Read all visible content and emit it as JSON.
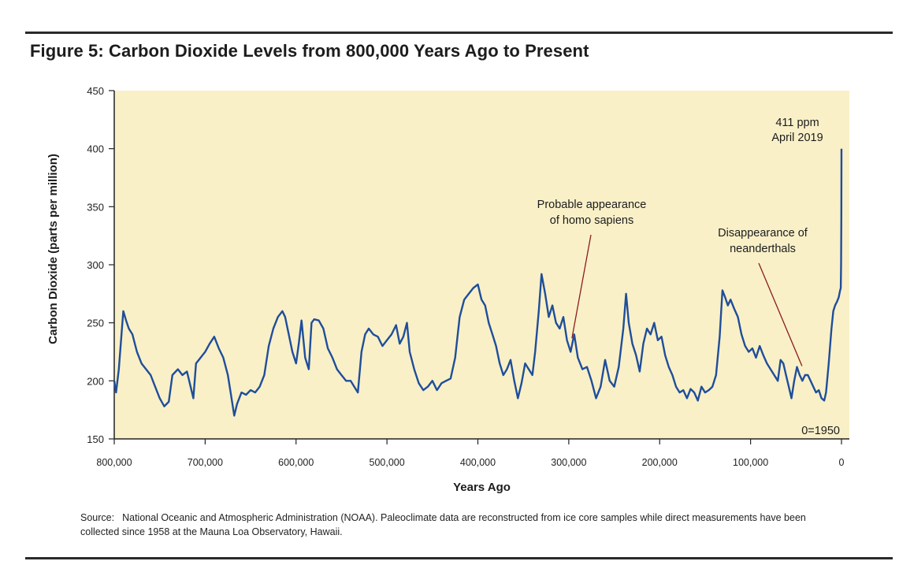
{
  "figure": {
    "title": "Figure 5: Carbon Dioxide Levels from 800,000 Years Ago to Present",
    "source_label": "Source:",
    "source_text": "National Oceanic and Atmospheric Administration (NOAA). Paleoclimate data are reconstructed from ice core samples while direct measurements have been collected since 1958 at the Mauna Loa Observatory, Hawaii."
  },
  "colors": {
    "plot_background": "#f9f0c8",
    "line": "#1f4e9a",
    "annotation_line": "#8b1c1c",
    "axis": "#222222"
  },
  "chart_data": {
    "type": "line",
    "xlabel": "Years Ago",
    "ylabel": "Carbon Dioxide (parts per million)",
    "xlim": [
      800000,
      0
    ],
    "ylim": [
      150,
      450
    ],
    "x_ticks": [
      800000,
      700000,
      600000,
      500000,
      400000,
      300000,
      200000,
      100000,
      0
    ],
    "x_tick_labels": [
      "800,000",
      "700,000",
      "600,000",
      "500,000",
      "400,000",
      "300,000",
      "200,000",
      "100,000",
      "0"
    ],
    "y_ticks": [
      150,
      200,
      250,
      300,
      350,
      400,
      450
    ],
    "y_tick_labels": [
      "150",
      "200",
      "250",
      "300",
      "350",
      "400",
      "450"
    ],
    "grid": false,
    "legend": "none",
    "x_reversed": true,
    "series": [
      {
        "values": [
          [
            800000,
            200
          ],
          [
            798000,
            190
          ],
          [
            795000,
            210
          ],
          [
            792000,
            240
          ],
          [
            790000,
            260
          ],
          [
            787000,
            252
          ],
          [
            784000,
            245
          ],
          [
            780000,
            240
          ],
          [
            775000,
            225
          ],
          [
            770000,
            215
          ],
          [
            765000,
            210
          ],
          [
            760000,
            205
          ],
          [
            755000,
            195
          ],
          [
            750000,
            185
          ],
          [
            745000,
            178
          ],
          [
            740000,
            182
          ],
          [
            736000,
            205
          ],
          [
            730000,
            210
          ],
          [
            725000,
            205
          ],
          [
            720000,
            208
          ],
          [
            716000,
            195
          ],
          [
            713000,
            185
          ],
          [
            710000,
            215
          ],
          [
            705000,
            220
          ],
          [
            700000,
            225
          ],
          [
            695000,
            232
          ],
          [
            690000,
            238
          ],
          [
            685000,
            228
          ],
          [
            680000,
            220
          ],
          [
            675000,
            205
          ],
          [
            672000,
            190
          ],
          [
            668000,
            170
          ],
          [
            665000,
            180
          ],
          [
            660000,
            190
          ],
          [
            655000,
            188
          ],
          [
            650000,
            192
          ],
          [
            645000,
            190
          ],
          [
            640000,
            195
          ],
          [
            635000,
            205
          ],
          [
            630000,
            230
          ],
          [
            625000,
            245
          ],
          [
            620000,
            255
          ],
          [
            615000,
            260
          ],
          [
            612000,
            255
          ],
          [
            608000,
            240
          ],
          [
            604000,
            225
          ],
          [
            600000,
            215
          ],
          [
            597000,
            232
          ],
          [
            594000,
            252
          ],
          [
            590000,
            220
          ],
          [
            586000,
            210
          ],
          [
            583000,
            250
          ],
          [
            580000,
            253
          ],
          [
            575000,
            252
          ],
          [
            570000,
            245
          ],
          [
            565000,
            228
          ],
          [
            560000,
            220
          ],
          [
            555000,
            210
          ],
          [
            550000,
            205
          ],
          [
            545000,
            200
          ],
          [
            540000,
            200
          ],
          [
            536000,
            195
          ],
          [
            532000,
            190
          ],
          [
            528000,
            225
          ],
          [
            524000,
            240
          ],
          [
            520000,
            245
          ],
          [
            515000,
            240
          ],
          [
            510000,
            238
          ],
          [
            505000,
            230
          ],
          [
            500000,
            235
          ],
          [
            495000,
            240
          ],
          [
            490000,
            248
          ],
          [
            486000,
            232
          ],
          [
            482000,
            238
          ],
          [
            478000,
            250
          ],
          [
            475000,
            225
          ],
          [
            470000,
            210
          ],
          [
            465000,
            198
          ],
          [
            460000,
            192
          ],
          [
            455000,
            195
          ],
          [
            450000,
            200
          ],
          [
            445000,
            192
          ],
          [
            440000,
            198
          ],
          [
            435000,
            200
          ],
          [
            430000,
            202
          ],
          [
            425000,
            220
          ],
          [
            420000,
            255
          ],
          [
            415000,
            270
          ],
          [
            410000,
            275
          ],
          [
            405000,
            280
          ],
          [
            400000,
            283
          ],
          [
            396000,
            270
          ],
          [
            392000,
            265
          ],
          [
            388000,
            250
          ],
          [
            384000,
            240
          ],
          [
            380000,
            230
          ],
          [
            376000,
            215
          ],
          [
            372000,
            205
          ],
          [
            368000,
            210
          ],
          [
            364000,
            218
          ],
          [
            360000,
            200
          ],
          [
            356000,
            185
          ],
          [
            352000,
            198
          ],
          [
            348000,
            215
          ],
          [
            344000,
            210
          ],
          [
            340000,
            205
          ],
          [
            337000,
            225
          ],
          [
            333000,
            260
          ],
          [
            330000,
            292
          ],
          [
            326000,
            275
          ],
          [
            322000,
            255
          ],
          [
            318000,
            265
          ],
          [
            314000,
            250
          ],
          [
            310000,
            245
          ],
          [
            306000,
            255
          ],
          [
            302000,
            235
          ],
          [
            298000,
            225
          ],
          [
            294000,
            240
          ],
          [
            290000,
            220
          ],
          [
            285000,
            210
          ],
          [
            280000,
            212
          ],
          [
            275000,
            200
          ],
          [
            270000,
            185
          ],
          [
            265000,
            195
          ],
          [
            260000,
            218
          ],
          [
            255000,
            200
          ],
          [
            250000,
            195
          ],
          [
            245000,
            212
          ],
          [
            240000,
            245
          ],
          [
            237000,
            275
          ],
          [
            234000,
            250
          ],
          [
            230000,
            232
          ],
          [
            226000,
            222
          ],
          [
            222000,
            208
          ],
          [
            218000,
            232
          ],
          [
            214000,
            245
          ],
          [
            210000,
            240
          ],
          [
            206000,
            250
          ],
          [
            202000,
            235
          ],
          [
            198000,
            238
          ],
          [
            194000,
            222
          ],
          [
            190000,
            212
          ],
          [
            186000,
            205
          ],
          [
            182000,
            195
          ],
          [
            178000,
            190
          ],
          [
            174000,
            192
          ],
          [
            170000,
            185
          ],
          [
            166000,
            193
          ],
          [
            162000,
            190
          ],
          [
            158000,
            183
          ],
          [
            154000,
            195
          ],
          [
            150000,
            190
          ],
          [
            146000,
            192
          ],
          [
            142000,
            195
          ],
          [
            138000,
            205
          ],
          [
            134000,
            238
          ],
          [
            131000,
            278
          ],
          [
            128000,
            272
          ],
          [
            125000,
            265
          ],
          [
            122000,
            270
          ],
          [
            118000,
            262
          ],
          [
            114000,
            255
          ],
          [
            110000,
            240
          ],
          [
            106000,
            230
          ],
          [
            102000,
            225
          ],
          [
            98000,
            228
          ],
          [
            94000,
            220
          ],
          [
            90000,
            230
          ],
          [
            86000,
            222
          ],
          [
            82000,
            215
          ],
          [
            78000,
            210
          ],
          [
            74000,
            205
          ],
          [
            70000,
            200
          ],
          [
            67000,
            218
          ],
          [
            64000,
            215
          ],
          [
            61000,
            205
          ],
          [
            58000,
            195
          ],
          [
            55000,
            185
          ],
          [
            52000,
            200
          ],
          [
            49000,
            212
          ],
          [
            46000,
            205
          ],
          [
            43000,
            200
          ],
          [
            40000,
            205
          ],
          [
            37000,
            205
          ],
          [
            34000,
            200
          ],
          [
            31000,
            195
          ],
          [
            28000,
            190
          ],
          [
            25000,
            192
          ],
          [
            22000,
            185
          ],
          [
            19000,
            183
          ],
          [
            17000,
            190
          ],
          [
            14000,
            215
          ],
          [
            11000,
            245
          ],
          [
            9000,
            260
          ],
          [
            7000,
            265
          ],
          [
            5000,
            268
          ],
          [
            3000,
            272
          ],
          [
            1500,
            278
          ],
          [
            800,
            280
          ],
          [
            400,
            300
          ],
          [
            200,
            340
          ],
          [
            0,
            400
          ]
        ]
      }
    ],
    "annotations": [
      {
        "lines": [
          "411 ppm",
          "April 2019"
        ]
      },
      {
        "lines": [
          "Probable appearance",
          "of homo sapiens"
        ],
        "points_to": [
          300000,
          238
        ]
      },
      {
        "lines": [
          "Disappearance of",
          "neanderthals"
        ],
        "points_to": [
          40000,
          225
        ]
      },
      {
        "lines": [
          "0=1950"
        ]
      }
    ]
  }
}
